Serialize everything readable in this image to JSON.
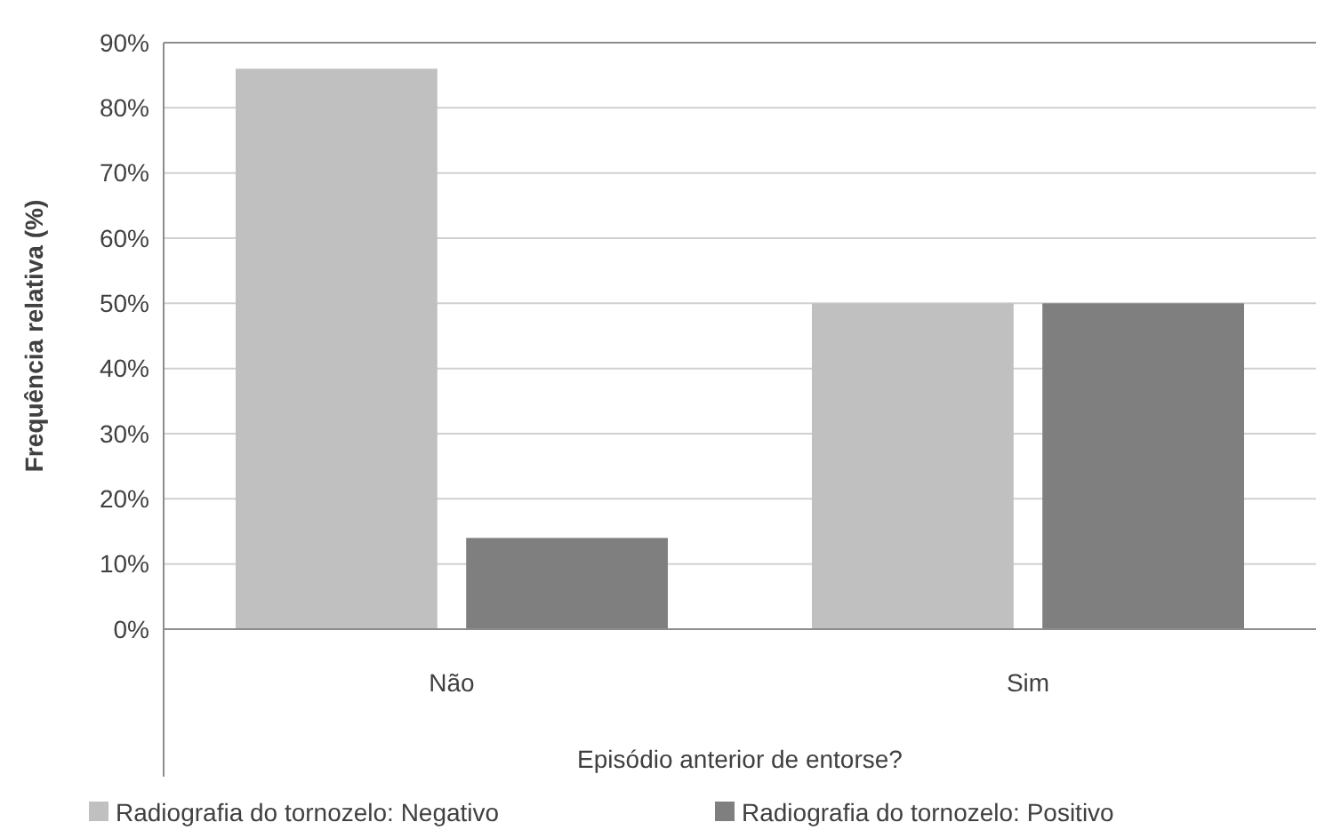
{
  "chart_data": {
    "type": "bar",
    "xlabel": "Episódio anterior de entorse?",
    "ylabel": "Frequência relativa (%)",
    "categories": [
      "Não",
      "Sim"
    ],
    "series": [
      {
        "name": "Radiografia do tornozelo: Negativo",
        "color": "#c0c0c0",
        "values": [
          86,
          50
        ]
      },
      {
        "name": "Radiografia do tornozelo: Positivo",
        "color": "#7f7f7f",
        "values": [
          14,
          50
        ]
      }
    ],
    "ylim": [
      0,
      90
    ],
    "yticks": [
      {
        "value": 0,
        "label": "0%"
      },
      {
        "value": 10,
        "label": "10%"
      },
      {
        "value": 20,
        "label": "20%"
      },
      {
        "value": 30,
        "label": "30%"
      },
      {
        "value": 40,
        "label": "40%"
      },
      {
        "value": 50,
        "label": "50%"
      },
      {
        "value": 60,
        "label": "60%"
      },
      {
        "value": 70,
        "label": "70%"
      },
      {
        "value": 80,
        "label": "80%"
      },
      {
        "value": 90,
        "label": "90%"
      }
    ],
    "grid": "y",
    "legend": "bottom"
  }
}
